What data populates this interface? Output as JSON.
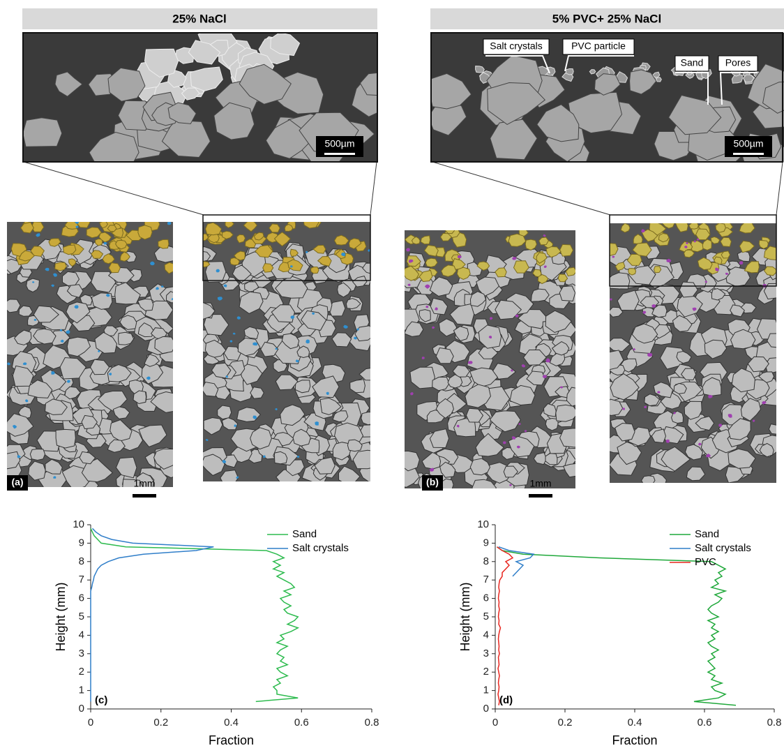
{
  "panels": [
    {
      "title": "25% NaCl",
      "scale_bar_top": "500µm",
      "scale_bar_bottom": "1mm",
      "label": "(a)"
    },
    {
      "title": "5% PVC+ 25% NaCl",
      "annotations": [
        "Salt crystals",
        "PVC particle",
        "Sand",
        "Pores"
      ],
      "scale_bar_top": "500µm",
      "scale_bar_bottom": "1mm",
      "label": "(b)"
    }
  ],
  "chart_data": [
    {
      "type": "line",
      "label": "(c)",
      "x_label": "Fraction",
      "y_label": "Height (mm)",
      "xlim": [
        0,
        0.8
      ],
      "xticks": [
        0,
        0.2,
        0.4,
        0.6,
        0.8
      ],
      "ylim": [
        0,
        10
      ],
      "yticks": [
        0,
        1,
        2,
        3,
        4,
        5,
        6,
        7,
        8,
        9,
        10
      ],
      "legend": "upper right",
      "y": [
        0.4,
        0.6,
        0.8,
        1.0,
        1.2,
        1.4,
        1.6,
        1.8,
        2.0,
        2.2,
        2.4,
        2.6,
        2.8,
        3.0,
        3.2,
        3.4,
        3.6,
        3.8,
        4.0,
        4.2,
        4.4,
        4.6,
        4.8,
        5.0,
        5.2,
        5.4,
        5.6,
        5.8,
        6.0,
        6.2,
        6.4,
        6.6,
        6.8,
        7.0,
        7.2,
        7.4,
        7.6,
        7.8,
        8.0,
        8.2,
        8.4,
        8.6,
        8.8,
        9.0,
        9.2,
        9.4,
        9.6,
        9.8
      ],
      "series": [
        {
          "name": "Sand",
          "color": "#2dbb4e",
          "values": [
            0.47,
            0.59,
            0.53,
            0.53,
            0.52,
            0.54,
            0.53,
            0.56,
            0.54,
            0.53,
            0.56,
            0.54,
            0.55,
            0.53,
            0.54,
            0.56,
            0.53,
            0.55,
            0.54,
            0.57,
            0.59,
            0.56,
            0.58,
            0.59,
            0.56,
            0.55,
            0.57,
            0.55,
            0.54,
            0.57,
            0.55,
            0.58,
            0.57,
            0.55,
            0.53,
            0.55,
            0.52,
            0.54,
            0.52,
            0.55,
            0.53,
            0.5,
            0.1,
            0.03,
            0.02,
            0.01,
            0.005,
            0
          ]
        },
        {
          "name": "Salt crystals",
          "color": "#2f7ec9",
          "values": [
            0,
            0,
            0,
            0,
            0,
            0,
            0,
            0,
            0,
            0,
            0,
            0,
            0,
            0,
            0,
            0,
            0,
            0,
            0,
            0,
            0,
            0,
            0,
            0,
            0,
            0,
            0,
            0,
            0,
            0,
            0,
            0.003,
            0.005,
            0.008,
            0.01,
            0.015,
            0.02,
            0.03,
            0.05,
            0.08,
            0.15,
            0.3,
            0.35,
            0.12,
            0.06,
            0.03,
            0.015,
            0.005
          ]
        }
      ]
    },
    {
      "type": "line",
      "label": "(d)",
      "x_label": "Fraction",
      "y_label": "Height (mm)",
      "xlim": [
        0,
        0.8
      ],
      "xticks": [
        0,
        0.2,
        0.4,
        0.6,
        0.8
      ],
      "ylim": [
        0,
        10
      ],
      "yticks": [
        0,
        1,
        2,
        3,
        4,
        5,
        6,
        7,
        8,
        9,
        10
      ],
      "legend": "upper right",
      "y": [
        0.2,
        0.4,
        0.6,
        0.8,
        1.0,
        1.2,
        1.4,
        1.6,
        1.8,
        2.0,
        2.2,
        2.4,
        2.6,
        2.8,
        3.0,
        3.2,
        3.4,
        3.6,
        3.8,
        4.0,
        4.2,
        4.4,
        4.6,
        4.8,
        5.0,
        5.2,
        5.4,
        5.6,
        5.8,
        6.0,
        6.2,
        6.4,
        6.6,
        6.8,
        7.0,
        7.2,
        7.4,
        7.6,
        7.8,
        8.0,
        8.2,
        8.4,
        8.6,
        8.8
      ],
      "series": [
        {
          "name": "Sand",
          "color": "#1fa83a",
          "values": [
            0.69,
            0.57,
            0.64,
            0.66,
            0.63,
            0.62,
            0.65,
            0.62,
            0.63,
            0.61,
            0.63,
            0.62,
            0.61,
            0.63,
            0.62,
            0.64,
            0.62,
            0.61,
            0.63,
            0.62,
            0.64,
            0.62,
            0.63,
            0.61,
            0.64,
            0.62,
            0.61,
            0.62,
            0.64,
            0.65,
            0.63,
            0.66,
            0.62,
            0.64,
            0.63,
            0.65,
            0.64,
            0.66,
            0.64,
            0.62,
            0.3,
            0.08,
            0.02,
            0.005
          ]
        },
        {
          "name": "Salt crystals",
          "color": "#2f7ec9",
          "values": [
            null,
            null,
            null,
            null,
            null,
            null,
            null,
            null,
            null,
            null,
            null,
            null,
            null,
            null,
            null,
            null,
            null,
            null,
            null,
            null,
            null,
            null,
            null,
            null,
            null,
            null,
            null,
            null,
            null,
            null,
            null,
            null,
            null,
            null,
            null,
            0.05,
            0.06,
            0.07,
            0.08,
            0.06,
            0.1,
            0.11,
            0.04,
            0.01
          ]
        },
        {
          "name": "PVC",
          "color": "#e8261f",
          "values": [
            0.01,
            0.012,
            0.01,
            0.008,
            0.01,
            0.011,
            0.009,
            0.01,
            0.012,
            0.01,
            0.008,
            0.011,
            0.01,
            0.009,
            0.012,
            0.01,
            0.011,
            0.01,
            0.009,
            0.01,
            0.012,
            0.015,
            0.01,
            0.011,
            0.009,
            0.01,
            0.012,
            0.01,
            0.011,
            0.009,
            0.01,
            0.012,
            0.01,
            0.011,
            0.013,
            0.02,
            0.02,
            0.03,
            0.04,
            0.03,
            0.05,
            0.04,
            0.02,
            0.005
          ]
        }
      ]
    }
  ]
}
